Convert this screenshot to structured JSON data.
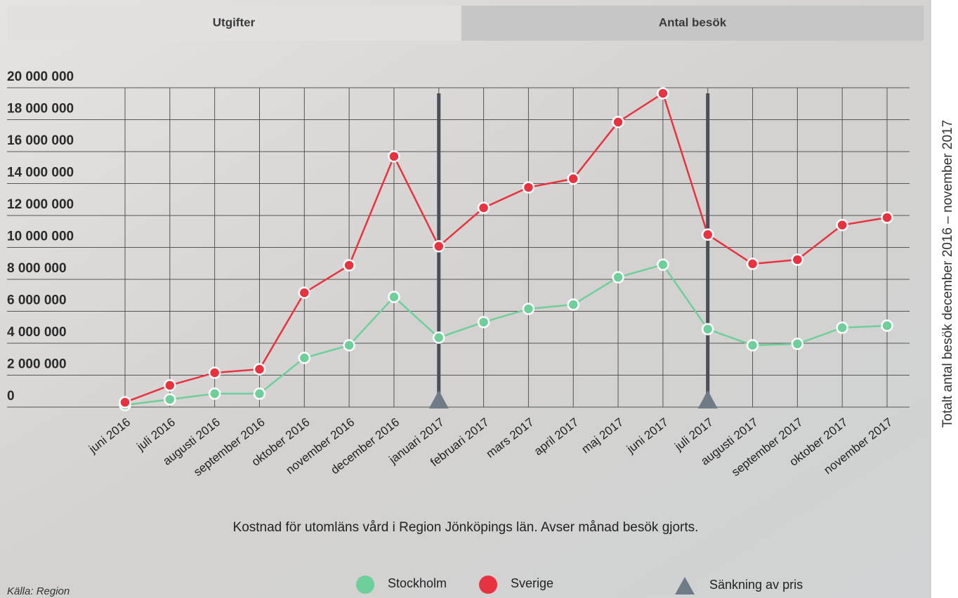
{
  "tabs": [
    "Utgifter",
    "Antal besök"
  ],
  "side_title": "Totalt antal besök december 2016 – november 2017",
  "chart_data": {
    "type": "line",
    "caption": "Kostnad för utomläns vård i Region Jönköpings län. Avser månad besök gjorts.",
    "source": "Källa: Region",
    "categories": [
      "juni 2016",
      "juli 2016",
      "augusti 2016",
      "september 2016",
      "oktober 2016",
      "november 2016",
      "december 2016",
      "januari 2017",
      "februari 2017",
      "mars 2017",
      "april 2017",
      "maj 2017",
      "juni 2017",
      "juli 2017",
      "augusti 2017",
      "september 2017",
      "oktober 2017",
      "november 2017"
    ],
    "series": [
      {
        "name": "Stockholm",
        "color": "#6fcf9a",
        "values": [
          130000,
          480000,
          840000,
          840000,
          3080000,
          3870000,
          6900000,
          4350000,
          5320000,
          6150000,
          6420000,
          8130000,
          8920000,
          4880000,
          3870000,
          3960000,
          4970000,
          5100000
        ]
      },
      {
        "name": "Sverige",
        "color": "#e8323f",
        "values": [
          300000,
          1360000,
          2150000,
          2370000,
          7160000,
          8880000,
          15700000,
          10070000,
          12480000,
          13760000,
          14300000,
          17850000,
          19650000,
          10800000,
          8970000,
          9230000,
          11400000,
          11870000
        ]
      }
    ],
    "price_reductions": {
      "name": "Sänkning av pris",
      "color": "#6f7c88",
      "categories": [
        "januari 2017",
        "juli 2017"
      ]
    },
    "ylim": [
      0,
      20000000
    ],
    "yticks": [
      0,
      {
        "value": 2000000,
        "label": "2 000 000"
      },
      {
        "value": 4000000,
        "label": "4 000 000"
      },
      {
        "value": 6000000,
        "label": "6 000 000"
      },
      {
        "value": 8000000,
        "label": "8 000 000"
      },
      {
        "value": 10000000,
        "label": "10 000 000"
      },
      {
        "value": 12000000,
        "label": "12 000 000"
      },
      {
        "value": 14000000,
        "label": "14 000 000"
      },
      {
        "value": 16000000,
        "label": "16 000 000"
      },
      {
        "value": 18000000,
        "label": "18 000 000"
      },
      {
        "value": 20000000,
        "label": "20 000 000"
      }
    ],
    "grid": true
  }
}
